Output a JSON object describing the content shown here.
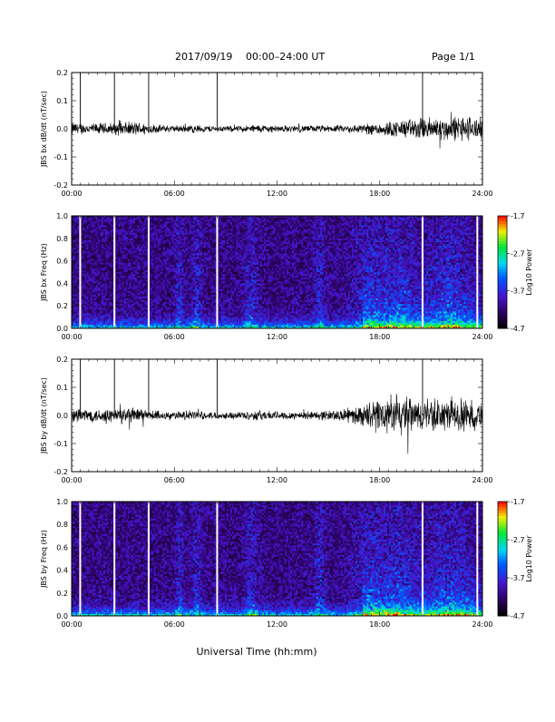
{
  "header": {
    "date_label": "2017/09/19",
    "range_label": "00:00–24:00 UT",
    "page_label": "Page 1/1"
  },
  "xaxis_label": "Universal Time (hh:mm)",
  "xticks": [
    "00:00",
    "06:00",
    "12:00",
    "18:00",
    "24:00"
  ],
  "colors": {
    "line": "#000000",
    "gap": "#ffffff"
  },
  "chart_data": [
    {
      "type": "line",
      "ylabel": "JBS bx dB/dt (nT/sec)",
      "xlim": [
        0,
        24
      ],
      "ylim": [
        -0.2,
        0.2
      ],
      "yticks": [
        "0.2",
        "0.1",
        "0.0",
        "-0.1",
        "-0.2"
      ],
      "spikes_hours": [
        0.5,
        2.5,
        4.5,
        8.5,
        20.5
      ],
      "noise_profile": {
        "hours": [
          0,
          1,
          2,
          3,
          4,
          5,
          6,
          7,
          8,
          9,
          10,
          11,
          12,
          13,
          14,
          15,
          16,
          17,
          18,
          19,
          20,
          21,
          22,
          23,
          24
        ],
        "amplitude": [
          0.02,
          0.015,
          0.018,
          0.02,
          0.02,
          0.012,
          0.01,
          0.012,
          0.01,
          0.008,
          0.01,
          0.012,
          0.01,
          0.01,
          0.01,
          0.01,
          0.01,
          0.015,
          0.02,
          0.025,
          0.03,
          0.035,
          0.035,
          0.04,
          0.03
        ]
      }
    },
    {
      "type": "heatmap",
      "ylabel": "JBS bx Freq (Hz)",
      "xlim": [
        0,
        24
      ],
      "ylim": [
        0.0,
        1.0
      ],
      "yticks": [
        "1.0",
        "0.8",
        "0.6",
        "0.4",
        "0.2",
        "0.0"
      ],
      "colorbar": {
        "label": "Log10 Power",
        "ticks": [
          "-1.7",
          "-2.7",
          "-3.7",
          "-4.7"
        ],
        "range": [
          -4.7,
          -1.7
        ]
      },
      "gaps_hours": [
        0.5,
        2.5,
        4.5,
        8.5,
        20.5,
        23.7
      ]
    },
    {
      "type": "line",
      "ylabel": "JBS by dB/dt (nT/sec)",
      "xlim": [
        0,
        24
      ],
      "ylim": [
        -0.2,
        0.2
      ],
      "yticks": [
        "0.2",
        "0.1",
        "0.0",
        "-0.1",
        "-0.2"
      ],
      "spikes_hours": [
        0.5,
        2.5,
        4.5,
        8.5,
        20.5
      ],
      "noise_profile": {
        "hours": [
          0,
          1,
          2,
          3,
          4,
          5,
          6,
          7,
          8,
          9,
          10,
          11,
          12,
          13,
          14,
          15,
          16,
          17,
          18,
          19,
          20,
          21,
          22,
          23,
          24
        ],
        "amplitude": [
          0.025,
          0.02,
          0.02,
          0.025,
          0.02,
          0.015,
          0.012,
          0.015,
          0.01,
          0.01,
          0.012,
          0.015,
          0.012,
          0.012,
          0.012,
          0.015,
          0.02,
          0.03,
          0.05,
          0.06,
          0.05,
          0.05,
          0.045,
          0.05,
          0.04
        ]
      }
    },
    {
      "type": "heatmap",
      "ylabel": "JBS by Freq (Hz)",
      "xlim": [
        0,
        24
      ],
      "ylim": [
        0.0,
        1.0
      ],
      "yticks": [
        "1.0",
        "0.8",
        "0.6",
        "0.4",
        "0.2",
        "0.0"
      ],
      "colorbar": {
        "label": "Log10 Power",
        "ticks": [
          "-1.7",
          "-2.7",
          "-3.7",
          "-4.7"
        ],
        "range": [
          -4.7,
          -1.7
        ]
      },
      "gaps_hours": [
        0.5,
        2.5,
        4.5,
        8.5,
        20.5,
        23.7
      ]
    }
  ]
}
